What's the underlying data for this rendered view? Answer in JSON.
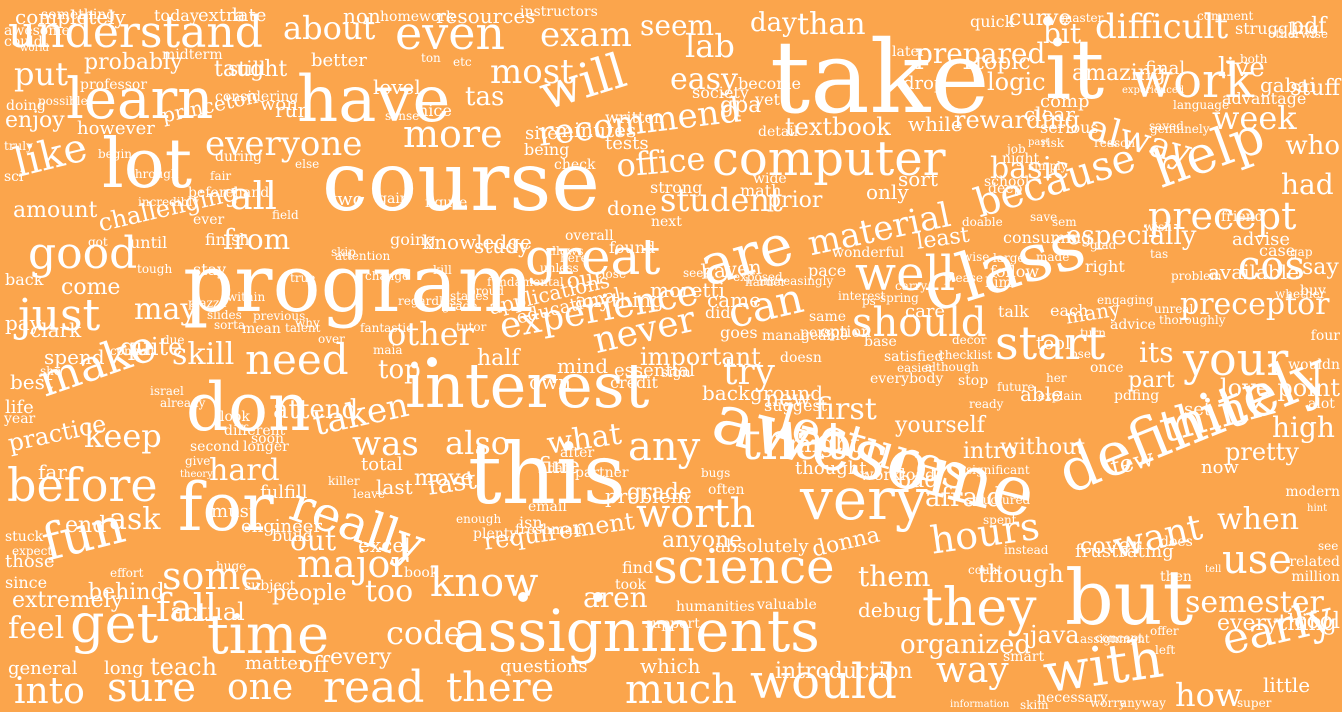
{
  "colors": {
    "background": "#fba54c",
    "text": "#ffffff"
  },
  "words": [
    "take",
    "it",
    "course",
    "program",
    "awesome",
    "this",
    "assignments",
    "interest",
    "have",
    "class",
    "computer",
    "definitely",
    "but",
    "very",
    "lot",
    "learn",
    "great",
    "are",
    "well",
    "help",
    "lectures",
    "don",
    "for",
    "time",
    "really",
    "science",
    "with",
    "would",
    "get",
    "fun",
    "before",
    "make",
    "understand",
    "even",
    "exam",
    "will",
    "work",
    "difficult",
    "everyone",
    "more",
    "recommend",
    "because",
    "precept",
    "cos",
    "like",
    "good",
    "just",
    "need",
    "start",
    "your",
    "should",
    "can",
    "try",
    "never",
    "experience",
    "that",
    "any",
    "worth",
    "they",
    "hours",
    "want",
    "use",
    "early",
    "semester",
    "know",
    "aren",
    "some",
    "major",
    "read",
    "there",
    "much",
    "one",
    "sure",
    "into",
    "feel",
    "fall",
    "code",
    "way",
    "think",
    "when",
    "material",
    "student",
    "office",
    "textbook",
    "basic",
    "especially",
    "preceptor",
    "alway",
    "week",
    "who",
    "had",
    "say",
    "pdf",
    "lab",
    "easy",
    "most",
    "tas",
    "about",
    "put",
    "taught",
    "princeton",
    "however",
    "enjoy",
    "amount",
    "challenging",
    "from",
    "all",
    "other",
    "skill",
    "keep",
    "taken",
    "hard",
    "ask",
    "out",
    "people",
    "too",
    "was",
    "also",
    "what",
    "fast",
    "really",
    "first",
    "new",
    "yourself",
    "afraid",
    "few",
    "pretty",
    "high",
    "intro",
    "without",
    "its",
    "part",
    "point",
    "love",
    "set",
    "now",
    "them",
    "though",
    "java",
    "organized",
    "everything",
    "cool",
    "how",
    "little",
    "introduction",
    "which",
    "questions",
    "anyone",
    "absolutely",
    "donna",
    "debug",
    "requirement",
    "excel",
    "book",
    "behind",
    "extremely",
    "actual",
    "long",
    "teach",
    "general",
    "every",
    "off",
    "matter",
    "end",
    "stuck",
    "those",
    "since",
    "practice",
    "far",
    "best",
    "life",
    "year",
    "spend",
    "quite",
    "clark",
    "may",
    "come",
    "pay",
    "back",
    "until",
    "doing",
    "possible",
    "probably",
    "midterm",
    "something",
    "today",
    "extra",
    "late",
    "non",
    "homework",
    "resources",
    "instructors",
    "seem",
    "day",
    "than",
    "prepared",
    "bit",
    "curve",
    "master",
    "comment",
    "struggling",
    "live",
    "final",
    "amazing",
    "gabai",
    "stuff",
    "advantage",
    "both",
    "comp",
    "serious",
    "logic",
    "clear",
    "later",
    "topic",
    "drop",
    "quick",
    "gpa",
    "become",
    "yet",
    "detail",
    "society",
    "minutes",
    "site",
    "written",
    "being",
    "tests",
    "check",
    "our",
    "applications",
    "educational",
    "anything",
    "moretti",
    "came",
    "did",
    "goes",
    "manageable",
    "same",
    "option",
    "person",
    "doesn",
    "important",
    "sign",
    "credit",
    "essential",
    "own",
    "mind",
    "half",
    "top",
    "fine",
    "after",
    "partner",
    "background",
    "might",
    "thought",
    "suggest",
    "workload",
    "bad",
    "problem",
    "often",
    "grade",
    "isn",
    "email",
    "plenty",
    "freshman",
    "enough",
    "subject",
    "huge",
    "engineer",
    "build",
    "must",
    "fulfill",
    "total",
    "attend",
    "leave",
    "last",
    "killer",
    "move",
    "date",
    "bugs",
    "support",
    "humanities",
    "valuable",
    "find",
    "took",
    "cover",
    "able",
    "available",
    "advise",
    "friend",
    "case",
    "gap",
    "right",
    "follow",
    "him",
    "talk",
    "each",
    "tool",
    "many",
    "consuming",
    "least",
    "wonderful",
    "pace",
    "care",
    "haven",
    "seek",
    "next",
    "found",
    "overall",
    "unless",
    "study",
    "knowledge",
    "going",
    "two",
    "gain",
    "figure",
    "else",
    "fair",
    "finish",
    "stay",
    "ever",
    "beforehand",
    "during",
    "through",
    "begin",
    "professor",
    "truly",
    "sci",
    "could",
    "awesome",
    "completely",
    "world",
    "won",
    "run",
    "considering",
    "still",
    "better",
    "level",
    "ton",
    "etc",
    "nice",
    "sense",
    "while",
    "rewarding",
    "wide",
    "math",
    "strong",
    "done",
    "prior",
    "only",
    "sort",
    "school",
    "deep",
    "night",
    "job",
    "past",
    "risk",
    "reason",
    "experienced",
    "genuinely",
    "language",
    "saved",
    "simply",
    "doable",
    "sem",
    "save",
    "otherwise",
    "whether",
    "buy",
    "four",
    "wouldn",
    "alot",
    "modern",
    "hint",
    "see",
    "related",
    "million",
    "tell",
    "does",
    "then",
    "frustrating",
    "instead",
    "count",
    "spent",
    "structured",
    "significant",
    "assignment",
    "concept",
    "offer",
    "left",
    "smart",
    "necessary",
    "worry",
    "anyway",
    "super",
    "skim",
    "information",
    "expect",
    "effort",
    "theory",
    "give",
    "second",
    "longer",
    "soon",
    "different",
    "look",
    "already",
    "israel",
    "she",
    "commit",
    "due",
    "tough",
    "got",
    "incredibly",
    "field",
    "skip",
    "attention",
    "change",
    "true",
    "previous",
    "mean",
    "regardless",
    "fantastic",
    "maia",
    "over",
    "why",
    "talent",
    "within",
    "sorta",
    "slides",
    "piazza",
    "base",
    "everybody",
    "satisfied",
    "easier",
    "although",
    "checklist",
    "decor",
    "stop",
    "ready",
    "future",
    "her",
    "explain",
    "bse",
    "turn",
    "engaging",
    "advice",
    "once",
    "pdfing",
    "thoroughly",
    "unreal",
    "problem",
    "tas",
    "wish",
    "glad",
    "made",
    "large",
    "wise",
    "please",
    "carry",
    "spring",
    "ps",
    "interest",
    "increasingly",
    "harder",
    "exposed",
    "close",
    "here",
    "allows",
    "kill",
    "fundamental",
    "proud",
    "stakes",
    "grade",
    "tutor"
  ]
}
